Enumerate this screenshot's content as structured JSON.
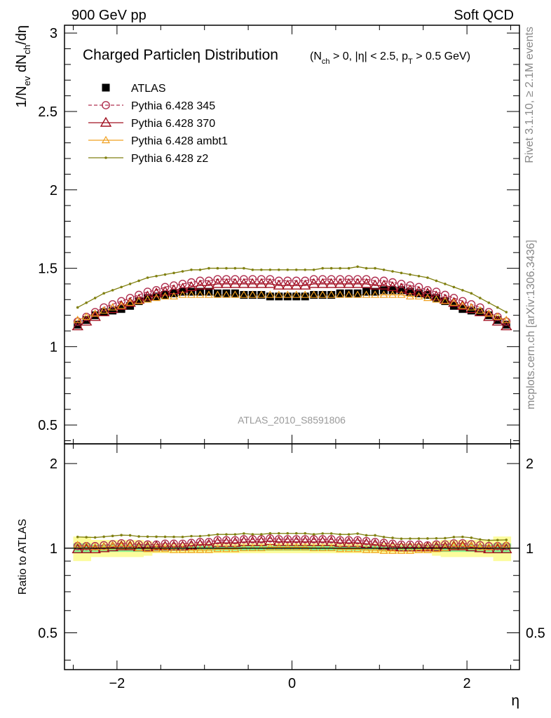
{
  "header": {
    "left": "900 GeV pp",
    "right": "Soft QCD",
    "side_top": "Rivet 3.1.10, ≥ 2.1M events",
    "side_bottom": "mcplots.cern.ch [arXiv:1306.3436]"
  },
  "main_title": "Charged Particleη Distribution",
  "main_title_sub": "(N_ch > 0, |η| < 2.5, p_T > 0.5 GeV)",
  "ylabel_main": "1/N_ev dN_ch/dη",
  "ylabel_ratio": "Ratio to ATLAS",
  "xlabel": "η",
  "watermark": "ATLAS_2010_S8591806",
  "chart_data": {
    "type": "scatter",
    "x_range": [
      -2.6,
      2.6
    ],
    "main_ylim": [
      0.38,
      3.05
    ],
    "ratio_ylim": [
      0.37,
      2.35
    ],
    "ratio_log": true,
    "x_ticks": [
      -2,
      0,
      2
    ],
    "x_tick_labels": [
      "−2",
      "0",
      "2"
    ],
    "main_y_ticks": [
      0.5,
      1,
      1.5,
      2,
      2.5,
      3
    ],
    "main_y_tick_labels": [
      "0.5",
      "1",
      "1.5",
      "2",
      "2.5",
      "3"
    ],
    "ratio_y_ticks": [
      0.5,
      1,
      2
    ],
    "ratio_y_tick_labels": [
      "0.5",
      "1",
      "2"
    ],
    "x": [
      -2.45,
      -2.35,
      -2.25,
      -2.15,
      -2.05,
      -1.95,
      -1.85,
      -1.75,
      -1.65,
      -1.55,
      -1.45,
      -1.35,
      -1.25,
      -1.15,
      -1.05,
      -0.95,
      -0.85,
      -0.75,
      -0.65,
      -0.55,
      -0.45,
      -0.35,
      -0.25,
      -0.15,
      -0.05,
      0.05,
      0.15,
      0.25,
      0.35,
      0.45,
      0.55,
      0.65,
      0.75,
      0.85,
      0.95,
      1.05,
      1.15,
      1.25,
      1.35,
      1.45,
      1.55,
      1.65,
      1.75,
      1.85,
      1.95,
      2.05,
      2.15,
      2.25,
      2.35,
      2.45
    ],
    "atlas": [
      1.14,
      1.17,
      1.2,
      1.22,
      1.23,
      1.24,
      1.26,
      1.29,
      1.31,
      1.32,
      1.33,
      1.34,
      1.35,
      1.35,
      1.35,
      1.35,
      1.34,
      1.34,
      1.34,
      1.33,
      1.33,
      1.33,
      1.32,
      1.32,
      1.32,
      1.32,
      1.32,
      1.33,
      1.33,
      1.33,
      1.34,
      1.34,
      1.34,
      1.35,
      1.35,
      1.36,
      1.36,
      1.36,
      1.35,
      1.34,
      1.33,
      1.31,
      1.29,
      1.26,
      1.24,
      1.23,
      1.22,
      1.2,
      1.17,
      1.14
    ],
    "atlas_err_frac": [
      0.1,
      0.1,
      0.07,
      0.07,
      0.07,
      0.07,
      0.07,
      0.07,
      0.06,
      0.04,
      0.04,
      0.04,
      0.04,
      0.04,
      0.04,
      0.04,
      0.04,
      0.04,
      0.04,
      0.04,
      0.04,
      0.04,
      0.04,
      0.04,
      0.04,
      0.04,
      0.04,
      0.04,
      0.04,
      0.04,
      0.04,
      0.04,
      0.04,
      0.04,
      0.04,
      0.04,
      0.04,
      0.04,
      0.04,
      0.04,
      0.04,
      0.06,
      0.07,
      0.07,
      0.07,
      0.07,
      0.07,
      0.07,
      0.1,
      0.1
    ],
    "atlas_stat_frac": [
      0.04,
      0.04,
      0.03,
      0.03,
      0.03,
      0.03,
      0.03,
      0.03,
      0.03,
      0.02,
      0.02,
      0.02,
      0.02,
      0.02,
      0.02,
      0.02,
      0.02,
      0.02,
      0.02,
      0.02,
      0.02,
      0.02,
      0.02,
      0.02,
      0.02,
      0.02,
      0.02,
      0.02,
      0.02,
      0.02,
      0.02,
      0.02,
      0.02,
      0.02,
      0.02,
      0.02,
      0.02,
      0.02,
      0.02,
      0.02,
      0.02,
      0.03,
      0.03,
      0.03,
      0.03,
      0.03,
      0.03,
      0.03,
      0.04,
      0.04
    ],
    "series": [
      {
        "name": "ATLAS",
        "color": "#000000",
        "marker": "square",
        "key": "atlas"
      },
      {
        "name": "Pythia 6.428 345",
        "color": "#b03050",
        "marker": "circle-open",
        "line": "dashed",
        "values": [
          1.16,
          1.19,
          1.22,
          1.25,
          1.27,
          1.29,
          1.31,
          1.33,
          1.35,
          1.36,
          1.38,
          1.39,
          1.4,
          1.41,
          1.42,
          1.42,
          1.43,
          1.43,
          1.43,
          1.43,
          1.43,
          1.43,
          1.43,
          1.42,
          1.42,
          1.42,
          1.42,
          1.43,
          1.43,
          1.43,
          1.43,
          1.43,
          1.43,
          1.43,
          1.42,
          1.42,
          1.41,
          1.4,
          1.39,
          1.38,
          1.36,
          1.35,
          1.33,
          1.31,
          1.29,
          1.27,
          1.25,
          1.22,
          1.19,
          1.16
        ]
      },
      {
        "name": "Pythia 6.428 370",
        "color": "#a01020",
        "marker": "triangle-open",
        "line": "solid",
        "values": [
          1.13,
          1.16,
          1.19,
          1.22,
          1.24,
          1.26,
          1.28,
          1.3,
          1.32,
          1.34,
          1.35,
          1.36,
          1.37,
          1.38,
          1.39,
          1.39,
          1.4,
          1.4,
          1.4,
          1.4,
          1.4,
          1.4,
          1.4,
          1.39,
          1.39,
          1.39,
          1.39,
          1.4,
          1.4,
          1.4,
          1.4,
          1.4,
          1.4,
          1.4,
          1.39,
          1.39,
          1.38,
          1.37,
          1.36,
          1.35,
          1.34,
          1.32,
          1.3,
          1.28,
          1.26,
          1.24,
          1.22,
          1.19,
          1.16,
          1.13
        ]
      },
      {
        "name": "Pythia 6.428 ambt1",
        "color": "#f0a020",
        "marker": "triangle-open-small",
        "line": "solid",
        "values": [
          1.17,
          1.19,
          1.21,
          1.23,
          1.25,
          1.26,
          1.28,
          1.29,
          1.3,
          1.31,
          1.32,
          1.32,
          1.33,
          1.33,
          1.33,
          1.33,
          1.33,
          1.33,
          1.33,
          1.33,
          1.33,
          1.33,
          1.33,
          1.33,
          1.33,
          1.33,
          1.33,
          1.33,
          1.33,
          1.33,
          1.33,
          1.33,
          1.33,
          1.33,
          1.33,
          1.33,
          1.33,
          1.33,
          1.32,
          1.32,
          1.31,
          1.3,
          1.29,
          1.28,
          1.26,
          1.25,
          1.23,
          1.21,
          1.19,
          1.17
        ]
      },
      {
        "name": "Pythia 6.428 z2",
        "color": "#808010",
        "marker": "dot",
        "line": "solid",
        "values": [
          1.25,
          1.28,
          1.31,
          1.34,
          1.36,
          1.38,
          1.4,
          1.42,
          1.44,
          1.45,
          1.46,
          1.47,
          1.48,
          1.49,
          1.49,
          1.5,
          1.5,
          1.5,
          1.5,
          1.5,
          1.49,
          1.49,
          1.49,
          1.49,
          1.49,
          1.49,
          1.49,
          1.49,
          1.5,
          1.5,
          1.5,
          1.5,
          1.51,
          1.5,
          1.5,
          1.49,
          1.48,
          1.47,
          1.46,
          1.45,
          1.44,
          1.42,
          1.4,
          1.38,
          1.36,
          1.34,
          1.31,
          1.28,
          1.25,
          1.22
        ]
      }
    ]
  }
}
